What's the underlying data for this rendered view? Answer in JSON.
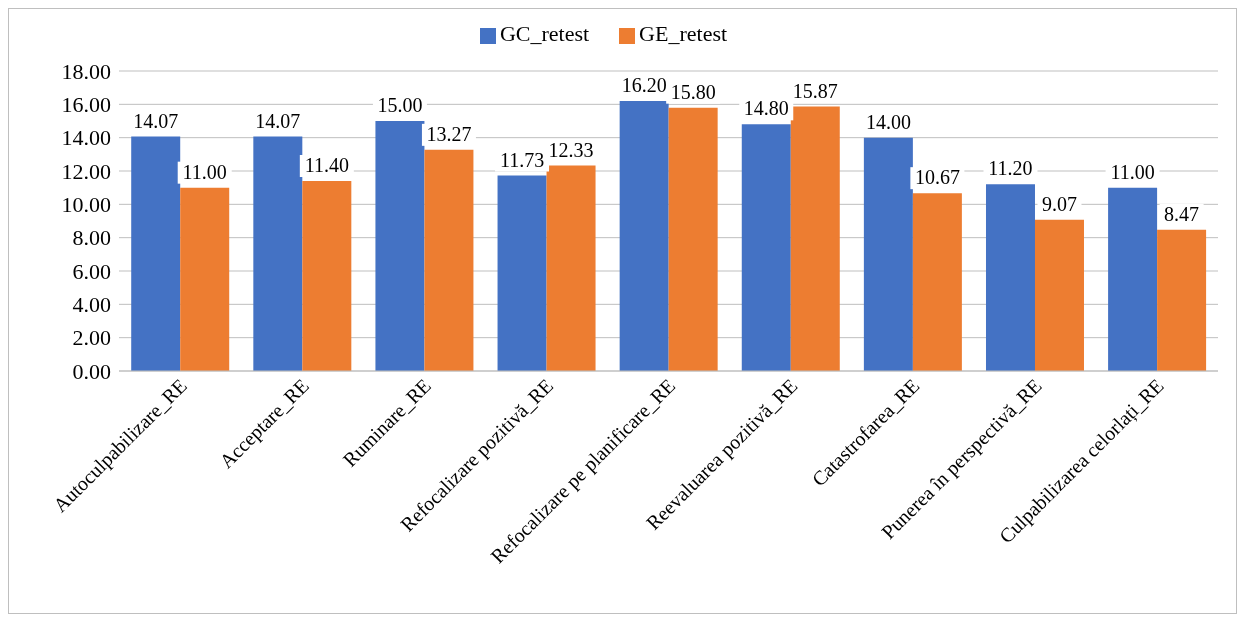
{
  "chart_data": {
    "type": "bar",
    "categories": [
      "Autoculpabilizare_RE",
      "Acceptare_RE",
      "Ruminare_RE",
      "Refocalizare pozitivă_RE",
      "Refocalizare pe planificare_RE",
      "Reevaluarea pozitivă_RE",
      "Catastrofarea_RE",
      "Punerea în perspectivă_RE",
      "Culpabilizarea celorlați_RE"
    ],
    "series": [
      {
        "name": "GC_retest",
        "color": "#4472c4",
        "values": [
          14.07,
          14.07,
          15.0,
          11.73,
          16.2,
          14.8,
          14.0,
          11.2,
          11.0
        ],
        "value_labels": [
          "14.07",
          "14.07",
          "15.00",
          "11.73",
          "16.20",
          "14.80",
          "14.00",
          "11.20",
          "11.00"
        ]
      },
      {
        "name": "GE_retest",
        "color": "#ed7d31",
        "values": [
          11.0,
          11.4,
          13.27,
          12.33,
          15.8,
          15.87,
          10.67,
          9.07,
          8.47
        ],
        "value_labels": [
          "11.00",
          "11.40",
          "13.27",
          "12.33",
          "15.80",
          "15.87",
          "10.67",
          "9.07",
          "8.47"
        ]
      }
    ],
    "ylim": [
      0,
      18
    ],
    "yticks": [
      {
        "value": 0,
        "label": "0.00"
      },
      {
        "value": 2,
        "label": "2.00"
      },
      {
        "value": 4,
        "label": "4.00"
      },
      {
        "value": 6,
        "label": "6.00"
      },
      {
        "value": 8,
        "label": "8.00"
      },
      {
        "value": 10,
        "label": "10.00"
      },
      {
        "value": 12,
        "label": "12.00"
      },
      {
        "value": 14,
        "label": "14.00"
      },
      {
        "value": 16,
        "label": "16.00"
      },
      {
        "value": 18,
        "label": "18.00"
      }
    ],
    "grid": "y",
    "legend": "top"
  }
}
